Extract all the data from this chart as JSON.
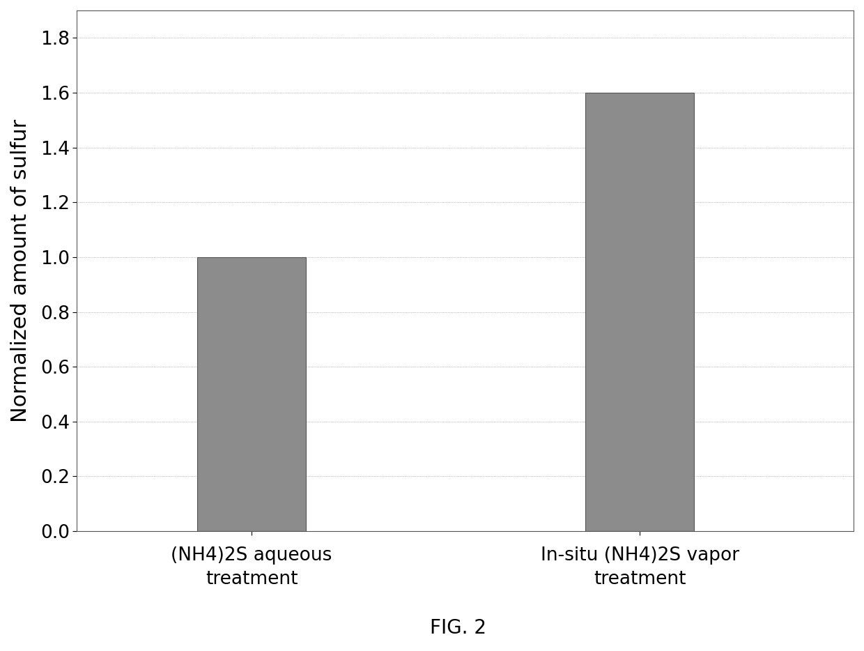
{
  "categories": [
    "(NH4)2S aqueous\ntreatment",
    "In-situ (NH4)2S vapor\ntreatment"
  ],
  "values": [
    1.0,
    1.6
  ],
  "bar_color": "#8c8c8c",
  "bar_edge_color": "#555555",
  "bar_width": 0.28,
  "bar_positions": [
    1,
    2
  ],
  "ylabel": "Normalized amount of sulfur",
  "ylim": [
    0,
    1.9
  ],
  "yticks": [
    0,
    0.2,
    0.4,
    0.6,
    0.8,
    1.0,
    1.2,
    1.4,
    1.6,
    1.8
  ],
  "grid_color": "#999999",
  "grid_linestyle": ":",
  "grid_linewidth": 0.6,
  "background_color": "#ffffff",
  "plot_bg_color": "#ffffff",
  "caption": "FIG. 2",
  "caption_fontsize": 20,
  "ylabel_fontsize": 22,
  "tick_fontsize": 19,
  "xtick_fontsize": 19,
  "xlim": [
    0.55,
    2.55
  ]
}
